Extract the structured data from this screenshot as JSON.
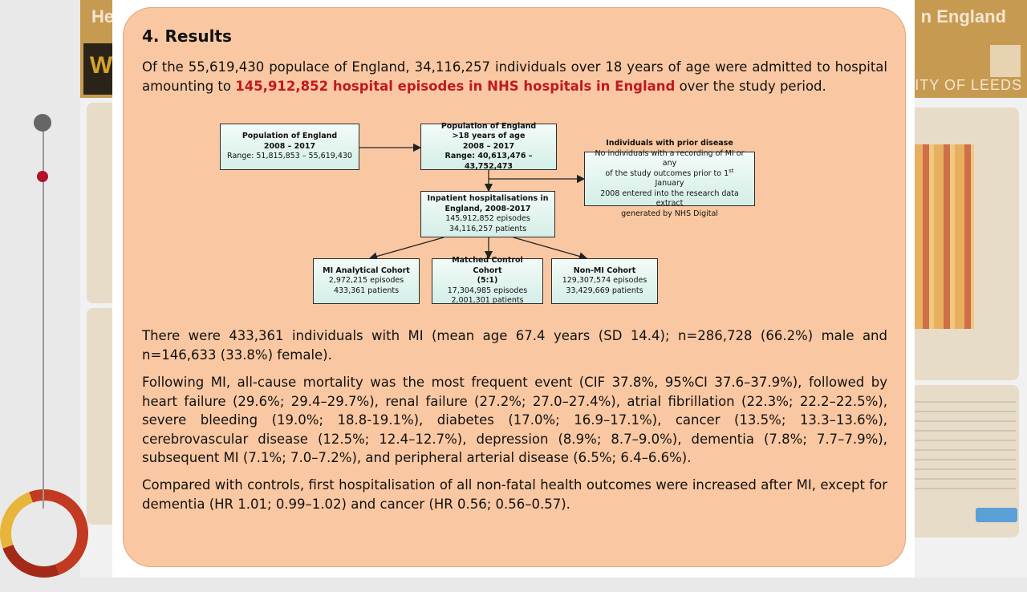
{
  "poster": {
    "title_left": "He",
    "title_right": "n England",
    "logo_letter": "W",
    "university": "SITY OF LEEDS"
  },
  "results": {
    "heading": "4. Results",
    "intro_before": "Of the 55,619,430 populace of England, 34,116,257 individuals over 18 years of age were admitted to hospital amounting to ",
    "intro_highlight": "145,912,852 hospital episodes in NHS hospitals in England",
    "intro_after": " over the study period.",
    "mi_paragraph": "There were 433,361 individuals with MI (mean age 67.4 years (SD 14.4); n=286,728 (66.2%) male and n=146,633 (33.8%) female).",
    "outcomes_paragraph": "Following MI, all-cause mortality was the most frequent event (CIF 37.8%, 95%CI 37.6–37.9%), followed by heart failure (29.6%; 29.4–29.7%), renal failure (27.2%; 27.0–27.4%), atrial fibrillation (22.3%; 22.2–22.5%), severe bleeding (19.0%; 18.8-19.1%), diabetes (17.0%; 16.9–17.1%), cancer (13.5%; 13.3–13.6%), cerebrovascular disease (12.5%; 12.4–12.7%), depression (8.9%; 8.7–9.0%), dementia (7.8%; 7.7–7.9%), subsequent MI (7.1%; 7.0–7.2%), and peripheral arterial disease (6.5%; 6.4–6.6%).",
    "compare_paragraph": "Compared with controls, first hospitalisation of all non-fatal health outcomes were increased after MI, except for dementia (HR 1.01; 0.99–1.02) and cancer (HR 0.56; 0.56–0.57)."
  },
  "flowchart": {
    "population": {
      "title": "Population of England",
      "years": "2008 – 2017",
      "range": "Range: 51,815,853 – 55,619,430"
    },
    "adults": {
      "title": "Population of England",
      "age": ">18 years of age",
      "years": "2008 – 2017",
      "range": "Range: 40,613,476 – 43,752,473"
    },
    "prior": {
      "title": "Individuals with prior disease",
      "line1": "No individuals with a recording of MI or any",
      "line2_pre": "of the study outcomes prior to 1",
      "line2_sup": "st",
      "line2_post": " January",
      "line3": "2008 entered into the research data extract",
      "line4": "generated by NHS Digital"
    },
    "inpatient": {
      "title1": "Inpatient hospitalisations in",
      "title2": "England, 2008-2017",
      "episodes": "145,912,852 episodes",
      "patients": "34,116,257 patients"
    },
    "mi": {
      "title": "MI Analytical Cohort",
      "episodes": "2,972,215 episodes",
      "patients": "433,361 patients"
    },
    "control": {
      "title1": "Matched Control Cohort",
      "title2": "(5:1)",
      "episodes": "17,304,985 episodes",
      "patients": "2,001,301 patients"
    },
    "nonmi": {
      "title": "Non-MI Cohort",
      "episodes": "129,307,574 episodes",
      "patients": "33,429,669 patients"
    }
  }
}
